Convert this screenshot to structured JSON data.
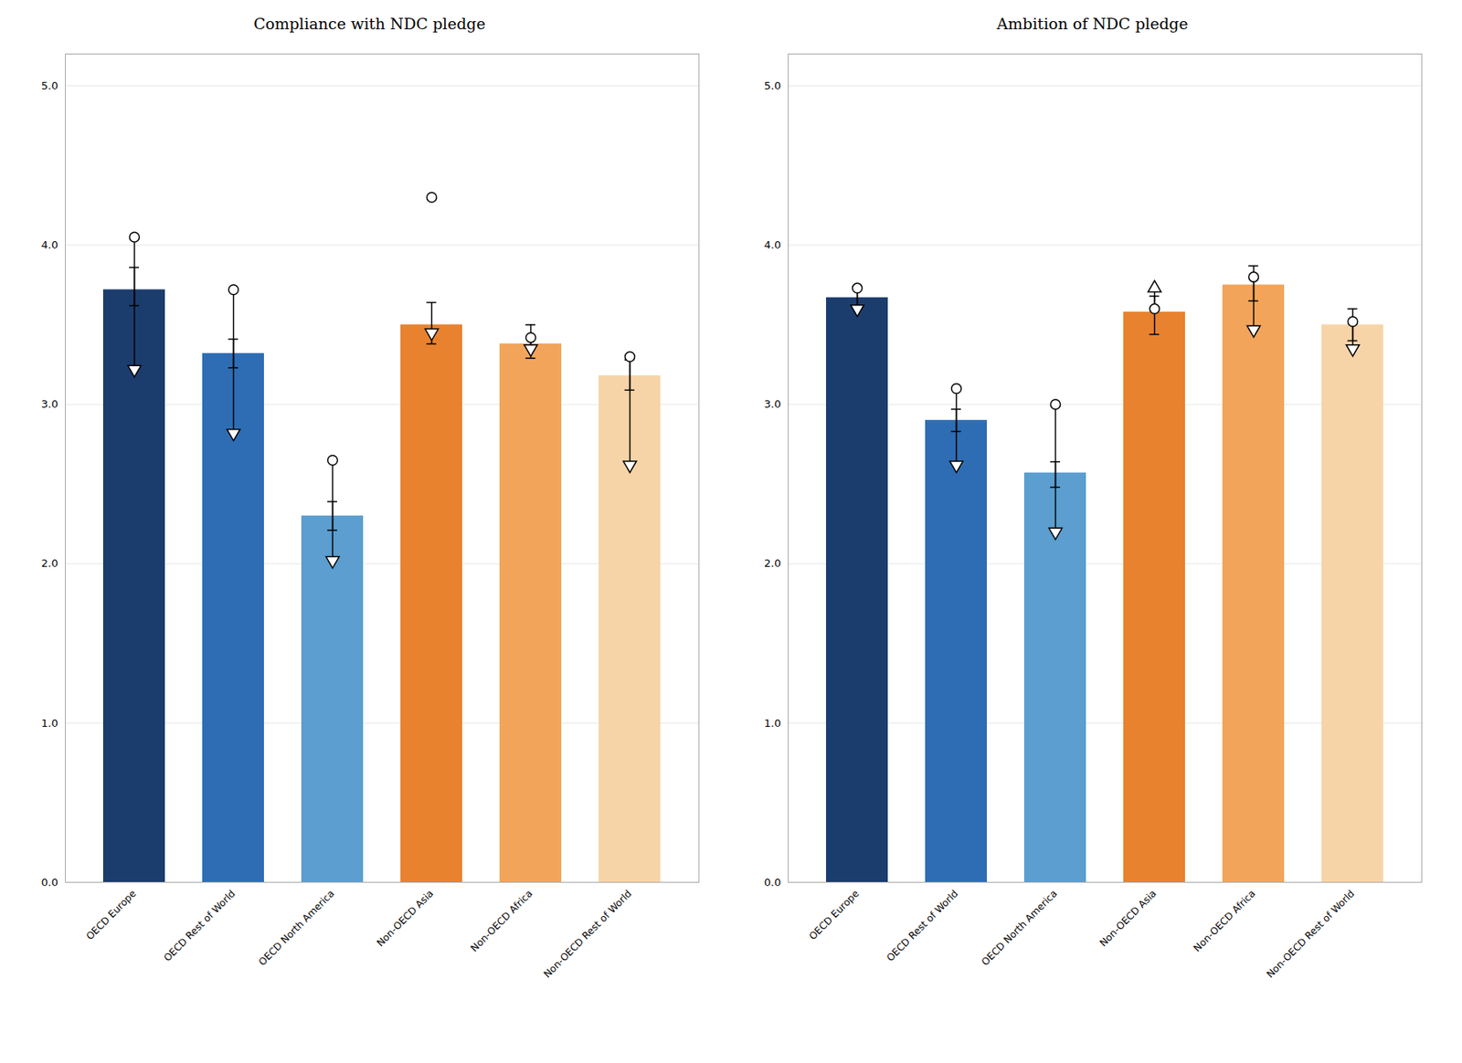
{
  "chart_data": [
    {
      "type": "bar",
      "title": "Compliance with NDC pledge",
      "categories": [
        "OECD Europe",
        "OECD Rest of World",
        "OECD North America",
        "Non-OECD Asia",
        "Non-OECD Africa",
        "Non-OECD Rest of World"
      ],
      "values": [
        3.72,
        3.32,
        2.3,
        3.5,
        3.38,
        3.18
      ],
      "colors": [
        "#1b3d6e",
        "#2e6db4",
        "#5b9ecf",
        "#e8822e",
        "#f2a55a",
        "#f7d4a8"
      ],
      "err_low": [
        0.1,
        0.09,
        0.09,
        0.12,
        0.09,
        0.09
      ],
      "err_high": [
        0.14,
        0.09,
        0.09,
        0.14,
        0.12,
        0.1
      ],
      "circle_values": [
        4.05,
        3.72,
        2.65,
        4.3,
        3.42,
        3.3
      ],
      "v_values": [
        3.22,
        2.82,
        2.02,
        3.45,
        3.35,
        2.62
      ],
      "circle_has_line": [
        true,
        true,
        true,
        false,
        true,
        true
      ],
      "v_is_up": [
        false,
        false,
        false,
        false,
        false,
        false
      ],
      "ylim": [
        0,
        5.2
      ],
      "yticks": [
        0,
        1,
        2,
        3,
        4,
        5
      ],
      "grid": true
    },
    {
      "type": "bar",
      "title": "Ambition of NDC pledge",
      "categories": [
        "OECD Europe",
        "OECD Rest of World",
        "OECD North America",
        "Non-OECD Asia",
        "Non-OECD Africa",
        "Non-OECD Rest of World"
      ],
      "values": [
        3.67,
        2.9,
        2.57,
        3.58,
        3.75,
        3.5
      ],
      "colors": [
        "#1b3d6e",
        "#2e6db4",
        "#5b9ecf",
        "#e8822e",
        "#f2a55a",
        "#f7d4a8"
      ],
      "err_low": [
        0.06,
        0.07,
        0.09,
        0.14,
        0.1,
        0.1
      ],
      "err_high": [
        0.07,
        0.07,
        0.07,
        0.1,
        0.12,
        0.1
      ],
      "circle_values": [
        3.73,
        3.1,
        3.0,
        3.6,
        3.8,
        3.52
      ],
      "v_values": [
        3.6,
        2.62,
        2.2,
        3.73,
        3.47,
        3.35
      ],
      "circle_has_line": [
        true,
        true,
        true,
        true,
        true,
        true
      ],
      "v_is_up": [
        false,
        false,
        false,
        true,
        false,
        false
      ],
      "ylim": [
        0,
        5.2
      ],
      "yticks": [
        0,
        1,
        2,
        3,
        4,
        5
      ],
      "grid": true
    }
  ]
}
